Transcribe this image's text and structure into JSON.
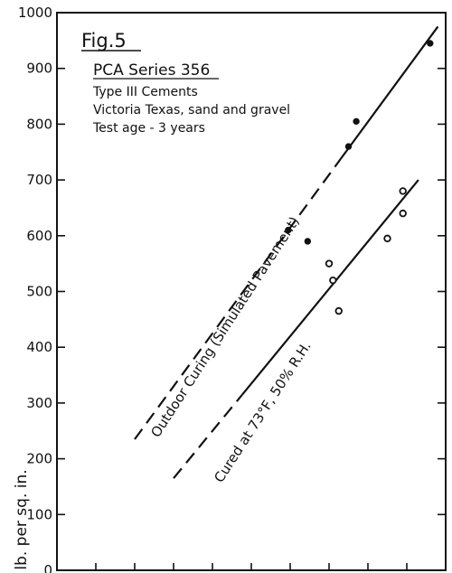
{
  "chart_data": {
    "type": "scatter",
    "title": "Fig.5",
    "ylabel": "lb. per sq. in.",
    "ylim": [
      0,
      1000
    ],
    "yticks": [
      "0",
      "100",
      "200",
      "300",
      "400",
      "500",
      "600",
      "700",
      "800",
      "900",
      "1000"
    ],
    "grid": false,
    "legend": {
      "position": "top-left",
      "title": "PCA Series 356",
      "lines": [
        "Type III Cements",
        "Victoria Texas, sand and gravel",
        "Test age - 3 years"
      ]
    },
    "series": [
      {
        "name": "Outdoor Curing (Simulated Pavement)",
        "marker": "filled",
        "points": [
          {
            "x": 5.95,
            "y": 610
          },
          {
            "x": 6.45,
            "y": 590
          },
          {
            "x": 7.5,
            "y": 760
          },
          {
            "x": 7.7,
            "y": 805
          },
          {
            "x": 9.6,
            "y": 945
          }
        ],
        "trend": [
          [
            2.0,
            235
          ],
          [
            9.8,
            975
          ]
        ]
      },
      {
        "name": "Cured at 73°F, 50% R.H.",
        "marker": "open",
        "points": [
          {
            "x": 7.0,
            "y": 550
          },
          {
            "x": 7.1,
            "y": 520
          },
          {
            "x": 7.25,
            "y": 465
          },
          {
            "x": 8.5,
            "y": 595
          },
          {
            "x": 8.9,
            "y": 680
          },
          {
            "x": 8.9,
            "y": 640
          }
        ],
        "trend": [
          [
            3.0,
            165
          ],
          [
            9.3,
            700
          ]
        ]
      }
    ],
    "annotations": [
      "Outdoor Curing (Simulated Pavement)",
      "Cured at 73°F, 50% R.H."
    ]
  }
}
